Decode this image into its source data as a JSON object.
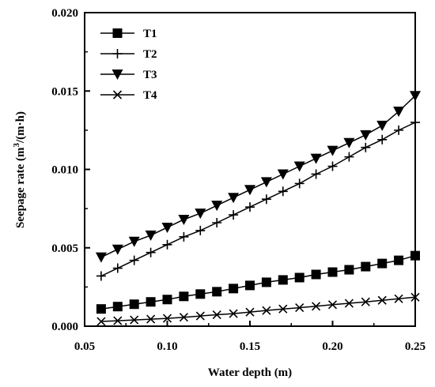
{
  "chart_data": {
    "type": "line",
    "xlabel": "Water depth (m)",
    "ylabel_main": "Seepage rate (m",
    "ylabel_sup": "3",
    "ylabel_tail": "/(m·h)",
    "xlim": [
      0.05,
      0.25
    ],
    "ylim": [
      0.0,
      0.02
    ],
    "x_ticks": [
      "0.05",
      "0.10",
      "0.15",
      "0.20",
      "0.25"
    ],
    "y_ticks": [
      "0.000",
      "0.005",
      "0.010",
      "0.015",
      "0.020"
    ],
    "grid": false,
    "legend_position": "top-left",
    "x": [
      0.06,
      0.07,
      0.08,
      0.09,
      0.1,
      0.11,
      0.12,
      0.13,
      0.14,
      0.15,
      0.16,
      0.17,
      0.18,
      0.19,
      0.2,
      0.21,
      0.22,
      0.23,
      0.24,
      0.25
    ],
    "series": [
      {
        "name": "T1",
        "marker": "square",
        "values": [
          0.0011,
          0.00125,
          0.0014,
          0.00155,
          0.0017,
          0.0019,
          0.00205,
          0.0022,
          0.0024,
          0.0026,
          0.0028,
          0.00295,
          0.0031,
          0.0033,
          0.00345,
          0.0036,
          0.0038,
          0.004,
          0.0042,
          0.0045
        ]
      },
      {
        "name": "T2",
        "marker": "plus",
        "values": [
          0.0032,
          0.0037,
          0.0042,
          0.0047,
          0.0052,
          0.0057,
          0.0061,
          0.0066,
          0.0071,
          0.0076,
          0.0081,
          0.0086,
          0.0091,
          0.0097,
          0.0102,
          0.0108,
          0.0114,
          0.0119,
          0.0125,
          0.013
        ]
      },
      {
        "name": "T3",
        "marker": "triangle-down",
        "values": [
          0.0044,
          0.0049,
          0.0054,
          0.0058,
          0.0063,
          0.0068,
          0.0072,
          0.0077,
          0.0082,
          0.0087,
          0.0092,
          0.0097,
          0.0102,
          0.0107,
          0.0112,
          0.0117,
          0.0122,
          0.0128,
          0.0137,
          0.0147
        ]
      },
      {
        "name": "T4",
        "marker": "x",
        "values": [
          0.0003,
          0.00035,
          0.0004,
          0.00045,
          0.0005,
          0.00057,
          0.00065,
          0.00073,
          0.0008,
          0.0009,
          0.001,
          0.0011,
          0.00118,
          0.00127,
          0.00137,
          0.00146,
          0.00155,
          0.00165,
          0.00175,
          0.00185
        ]
      }
    ]
  }
}
